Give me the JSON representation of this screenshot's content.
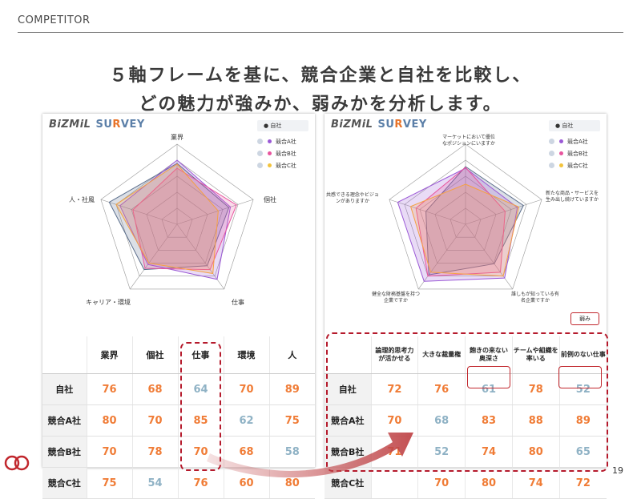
{
  "header": {
    "section": "COMPETITOR"
  },
  "headline": {
    "line1": "５軸フレームを基に、競合企業と自社を比較し、",
    "line2": "どの魅力が強みか、弱みかを分析します。"
  },
  "logo": {
    "part1": "BiZMiL",
    "part2a": "SU",
    "part2b": "R",
    "part2c": "VEY"
  },
  "legend": {
    "header": "● 自社",
    "items": [
      {
        "label": "競合A社",
        "color": "#9b59d6"
      },
      {
        "label": "競合B社",
        "color": "#e8559e"
      },
      {
        "label": "競合C社",
        "color": "#f3c33c"
      }
    ]
  },
  "colors": {
    "self": "#5b6e8c",
    "a": "#9b59d6",
    "b": "#e8559e",
    "c": "#f5a142",
    "high_value": "#f07c36",
    "low_value": "#8fb2c5",
    "highlight": "#b51a2c"
  },
  "left": {
    "axes": [
      "業界",
      "個社",
      "仕事",
      "キャリア・環境",
      "人・社風"
    ],
    "table": {
      "columns": [
        "業界",
        "個社",
        "仕事",
        "環境",
        "人"
      ],
      "rows": [
        {
          "name": "自社",
          "values": [
            "76",
            "68",
            "64",
            "70",
            "89"
          ]
        },
        {
          "name": "競合A社",
          "values": [
            "80",
            "70",
            "85",
            "62",
            "75"
          ]
        },
        {
          "name": "競合B社",
          "values": [
            "70",
            "78",
            "70",
            "68",
            "58"
          ]
        },
        {
          "name": "競合C社",
          "values": [
            "75",
            "54",
            "76",
            "60",
            "80"
          ]
        }
      ]
    }
  },
  "right": {
    "axes": [
      "マーケットにおいて優位なポジションにいますか",
      "新たな商品・サービスを生み出し続けていますか",
      "誰しもが知っている有名企業ですか",
      "健全な財務基盤を持つ企業ですか",
      "共感できる理念やビジョンがありますか"
    ],
    "weak_tag": "弱み",
    "table": {
      "columns": [
        "論理的思考力が活かせる",
        "大きな裁量権",
        "飽きの来ない奥深さ",
        "チームや組織を率いる",
        "前例のない仕事"
      ],
      "rows": [
        {
          "name": "自社",
          "values": [
            "72",
            "76",
            "61",
            "78",
            "52"
          ]
        },
        {
          "name": "競合A社",
          "values": [
            "70",
            "68",
            "83",
            "88",
            "89"
          ]
        },
        {
          "name": "競合B社",
          "values": [
            "71",
            "52",
            "74",
            "80",
            "65"
          ]
        },
        {
          "name": "競合C社",
          "values": [
            "",
            "70",
            "80",
            "74",
            "72"
          ]
        }
      ]
    }
  },
  "page_number": "19"
}
